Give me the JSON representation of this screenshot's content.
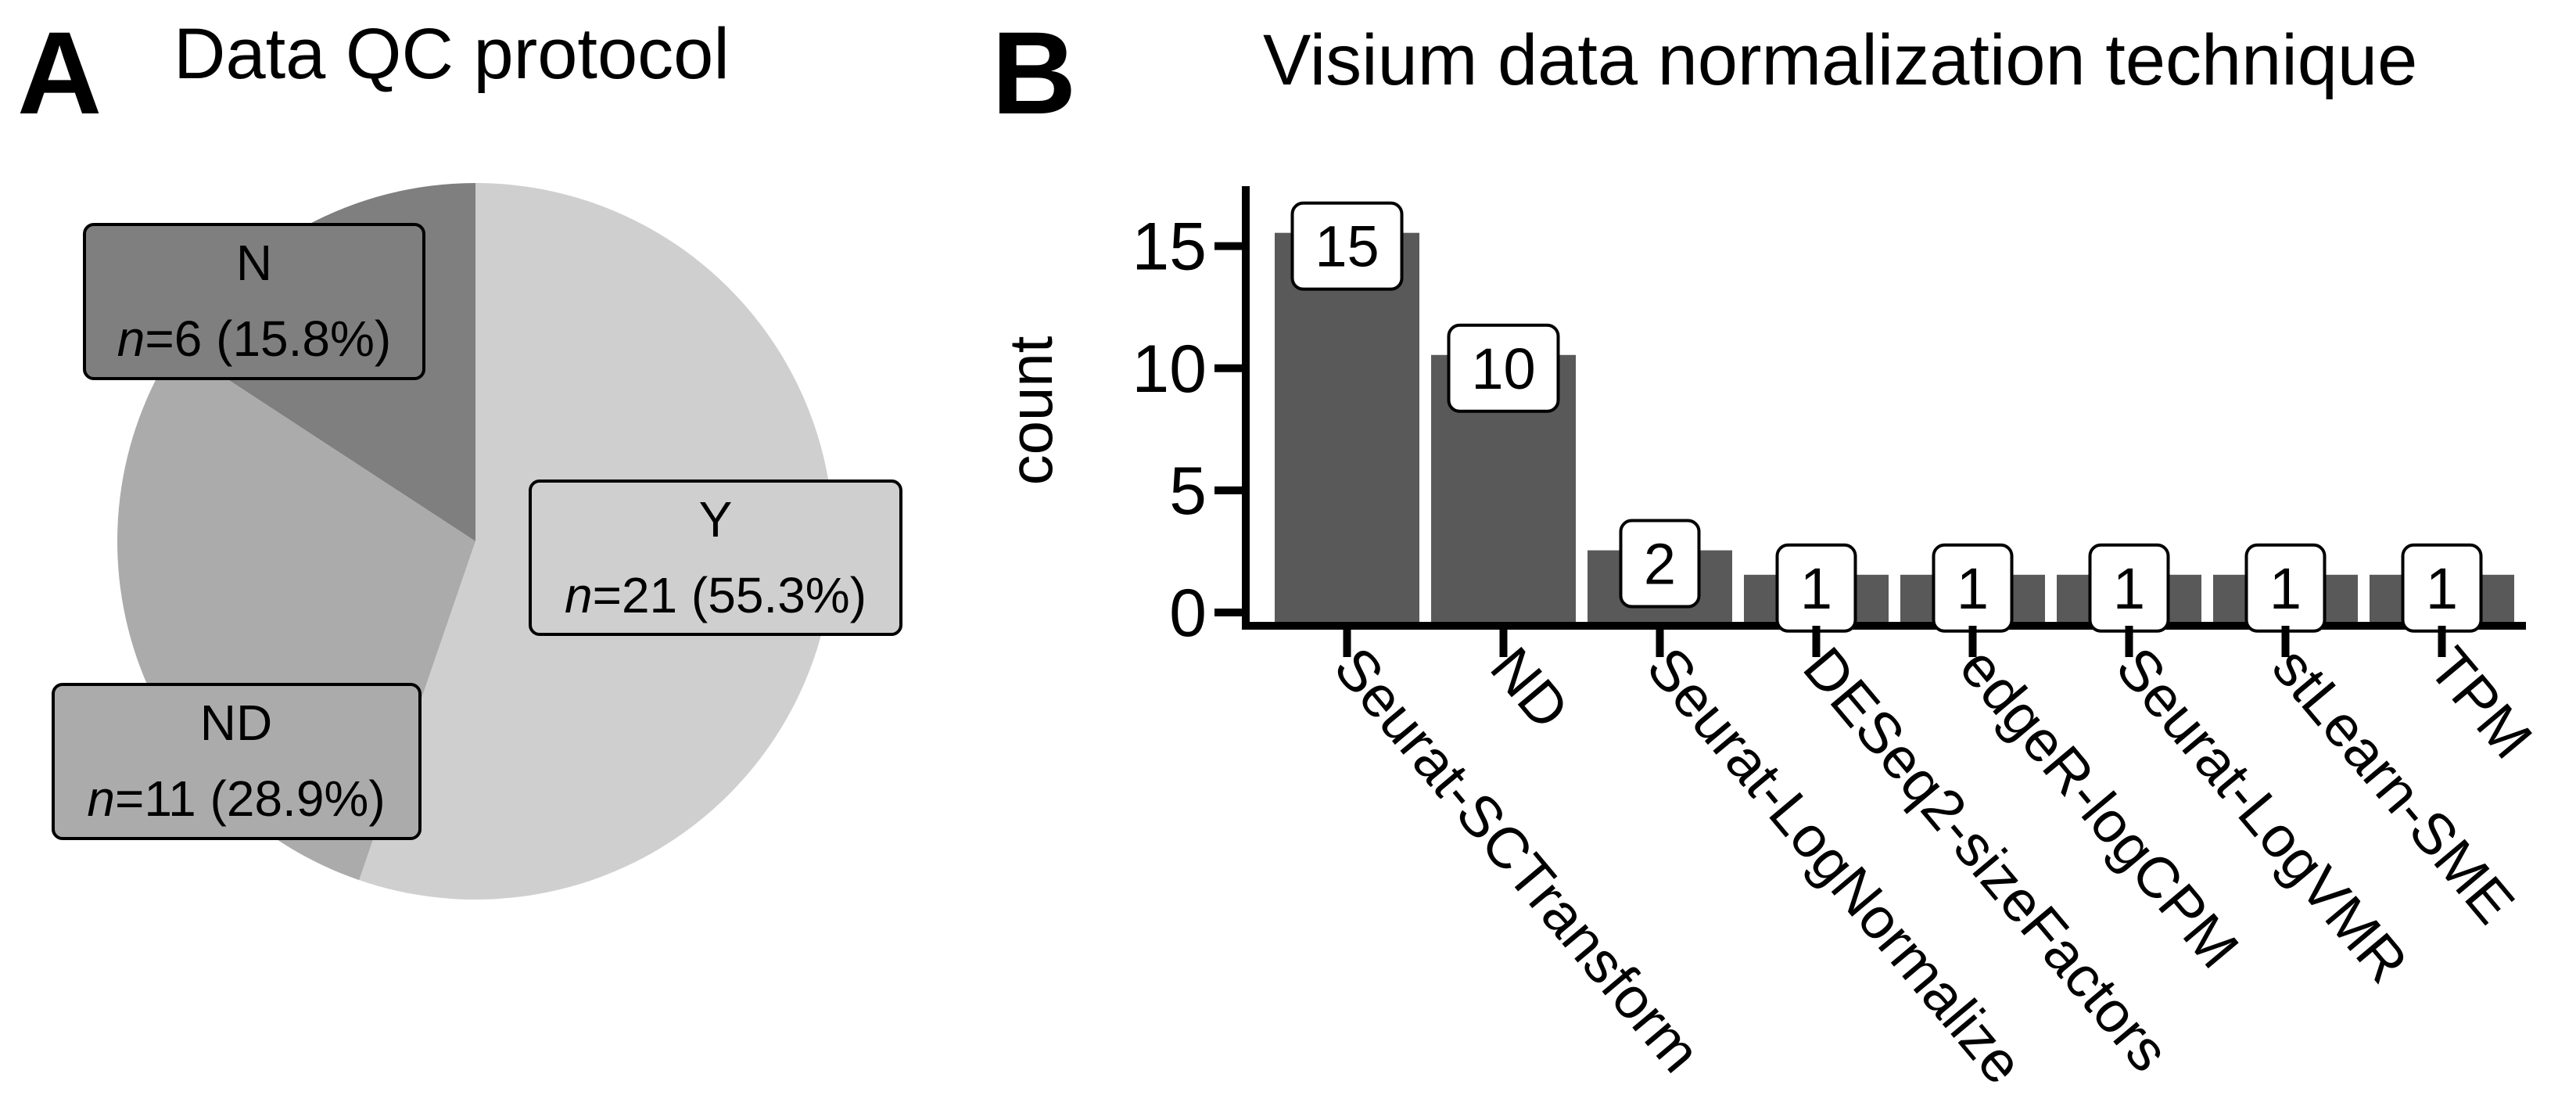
{
  "panels": {
    "a": {
      "letter": "A",
      "title": "Data QC protocol"
    },
    "b": {
      "letter": "B",
      "title": "Visium data normalization technique"
    }
  },
  "pie": {
    "slices": [
      {
        "key": "N",
        "label": "N",
        "count": 6,
        "count_text": "n",
        "rest_text": "=6 (15.8%)",
        "percent": 15.8,
        "color": "#7f7f7f"
      },
      {
        "key": "ND",
        "label": "ND",
        "count": 11,
        "count_text": "n",
        "rest_text": "=11 (28.9%)",
        "percent": 28.9,
        "color": "#ababab"
      },
      {
        "key": "Y",
        "label": "Y",
        "count": 21,
        "count_text": "n",
        "rest_text": "=21 (55.3%)",
        "percent": 55.3,
        "color": "#cfcfcf"
      }
    ]
  },
  "chart_data": [
    {
      "type": "pie",
      "title": "Data QC protocol",
      "categories": [
        "Y",
        "N",
        "ND"
      ],
      "values": [
        21,
        6,
        11
      ],
      "percentages": [
        55.3,
        15.8,
        28.9
      ]
    },
    {
      "type": "bar",
      "title": "Visium data normalization technique",
      "xlabel": "",
      "ylabel": "count",
      "ylim": [
        0,
        18
      ],
      "yticks": [
        0,
        5,
        10,
        15
      ],
      "categories": [
        "Seurat-SCTransform",
        "ND",
        "Seurat-LogNormalize",
        "DESeq2-sizeFactors",
        "edgeR-logCPM",
        "Seurat-LogVMR",
        "stLearn-SME",
        "TPM"
      ],
      "values": [
        15,
        10,
        2,
        1,
        1,
        1,
        1,
        1
      ],
      "bar_color": "#595959"
    }
  ]
}
